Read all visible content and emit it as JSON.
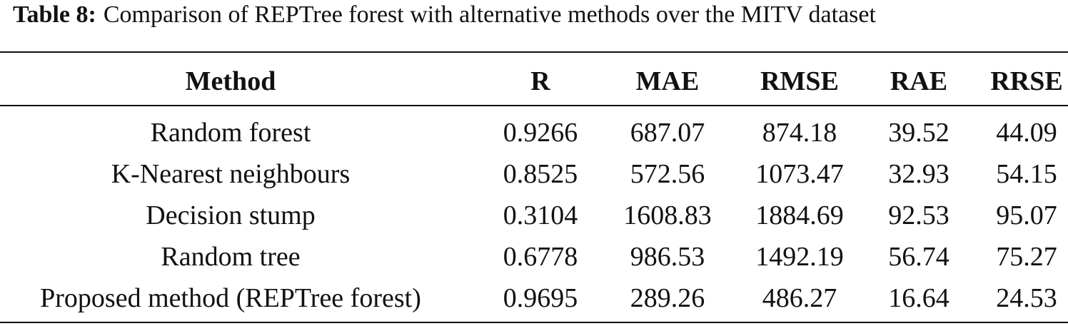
{
  "caption": {
    "label": "Table 8:",
    "text": "Comparison of REPTree forest with alternative methods over the MITV dataset"
  },
  "table": {
    "header": [
      "Method",
      "R",
      "MAE",
      "RMSE",
      "RAE",
      "RRSE"
    ],
    "rows": [
      [
        "Random forest",
        "0.9266",
        "687.07",
        "874.18",
        "39.52",
        "44.09"
      ],
      [
        "K-Nearest neighbours",
        "0.8525",
        "572.56",
        "1073.47",
        "32.93",
        "54.15"
      ],
      [
        "Decision stump",
        "0.3104",
        "1608.83",
        "1884.69",
        "92.53",
        "95.07"
      ],
      [
        "Random tree",
        "0.6778",
        "986.53",
        "1492.19",
        "56.74",
        "75.27"
      ],
      [
        "Proposed method (REPTree forest)",
        "0.9695",
        "289.26",
        "486.27",
        "16.64",
        "24.53"
      ]
    ]
  }
}
